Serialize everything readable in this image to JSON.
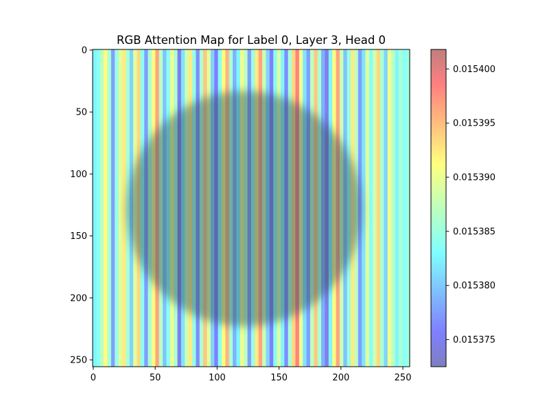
{
  "chart_data": {
    "type": "heatmap",
    "title": "RGB Attention Map for Label 0, Layer 3, Head 0",
    "xlabel": "",
    "ylabel": "",
    "xlim": [
      0,
      255
    ],
    "ylim": [
      255,
      0
    ],
    "x_ticks": [
      0,
      50,
      100,
      150,
      200,
      250
    ],
    "y_ticks": [
      0,
      50,
      100,
      150,
      200,
      250
    ],
    "colorbar": {
      "min": 0.0153725,
      "max": 0.0154018,
      "ticks": [
        0.015375,
        0.01538,
        0.015385,
        0.01539,
        0.015395,
        0.0154
      ],
      "tick_labels": [
        "0.015375",
        "0.015380",
        "0.015385",
        "0.015390",
        "0.015395",
        "0.015400"
      ],
      "colormap": "jet",
      "alpha": 0.5
    },
    "overlay": {
      "shape": "circle",
      "center": [
        122,
        128
      ],
      "radius": 95,
      "color": "#2a4a5a"
    },
    "column_values": [
      0.015383,
      0.015384,
      0.015387,
      0.015391,
      0.015386,
      0.015378,
      0.015385,
      0.015389,
      0.015392,
      0.015386,
      0.015381,
      0.015389,
      0.015393,
      0.015384,
      0.015378,
      0.015386,
      0.015391,
      0.015396,
      0.015387,
      0.01538,
      0.015384,
      0.01539,
      0.015386,
      0.015375,
      0.015382,
      0.015388,
      0.015392,
      0.015385,
      0.015377,
      0.015386,
      0.015394,
      0.015389,
      0.015381,
      0.015376,
      0.015384,
      0.015391,
      0.015395,
      0.015386,
      0.015379,
      0.015383,
      0.01539,
      0.015387,
      0.015378,
      0.015385,
      0.015392,
      0.015396,
      0.015388,
      0.015381,
      0.015376,
      0.015384,
      0.015389,
      0.015383,
      0.015377,
      0.015386,
      0.015393,
      0.015398,
      0.01539,
      0.015382,
      0.015378,
      0.015387,
      0.015394,
      0.015386,
      0.015379,
      0.015375,
      0.015383,
      0.015391,
      0.015396,
      0.015388,
      0.01538,
      0.015385,
      0.015392,
      0.015387,
      0.015378,
      0.015382,
      0.015389,
      0.015384,
      0.015388,
      0.015393,
      0.015386,
      0.015381,
      0.01539,
      0.015387,
      0.015383,
      0.015386,
      0.015384,
      0.015385
    ]
  }
}
